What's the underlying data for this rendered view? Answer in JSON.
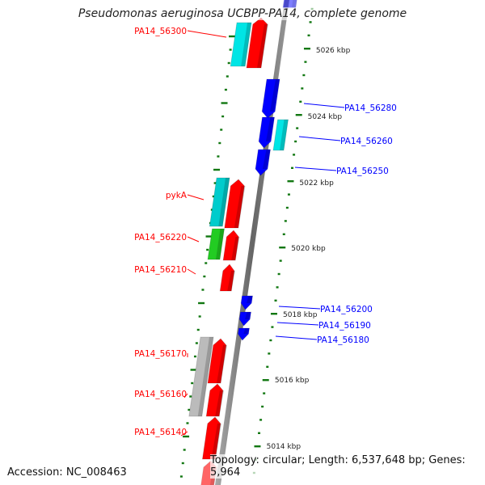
{
  "title": "Pseudomonas aeruginosa UCBPP-PA14, complete genome",
  "accession": "Accession: NC_008463",
  "summary": "Topology: circular; Length: 6,537,648 bp; Genes: 5,964",
  "ticks": [
    "5026 kbp",
    "5024 kbp",
    "5022 kbp",
    "5020 kbp",
    "5018 kbp",
    "5016 kbp",
    "5014 kbp"
  ],
  "left_labels": [
    "PA14_56300",
    "pykA",
    "PA14_56220",
    "PA14_56210",
    "PA14_56170",
    "PA14_56160",
    "PA14_56140"
  ],
  "right_labels": [
    "PA14_56280",
    "PA14_56260",
    "PA14_56250",
    "PA14_56200",
    "PA14_56190",
    "PA14_56180"
  ],
  "colors": {
    "reverse": "#ff0000",
    "forward": "#0000ff",
    "cyan": "#00e5e5",
    "green": "#22cc22",
    "grey": "#bbbbbb",
    "tick": "#117711"
  }
}
